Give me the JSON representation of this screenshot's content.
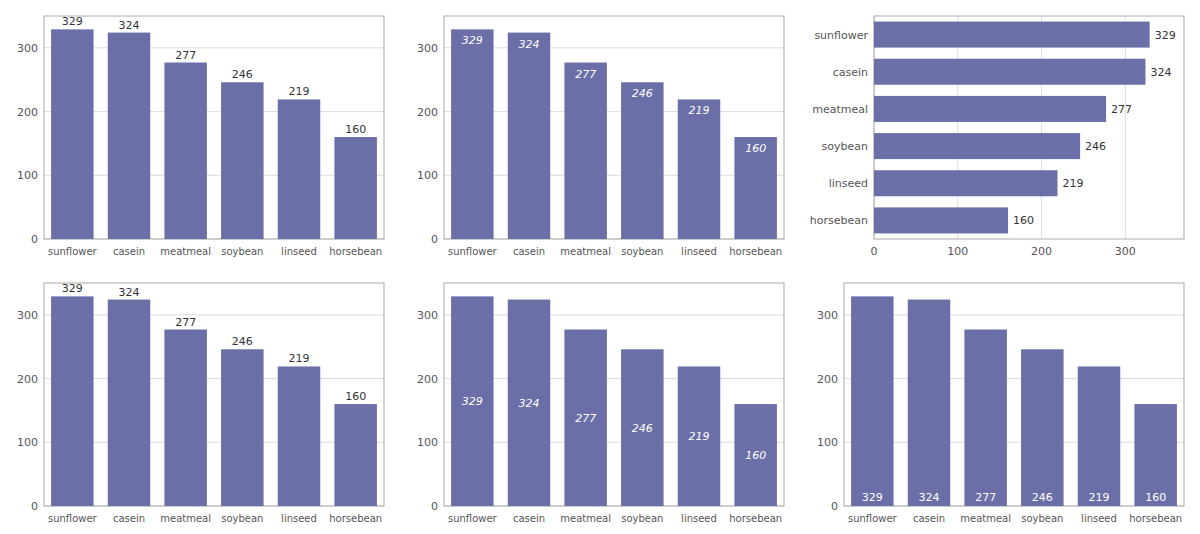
{
  "chart_data": [
    {
      "type": "bar",
      "categories": [
        "sunflower",
        "casein",
        "meatmeal",
        "soybean",
        "linseed",
        "horsebean"
      ],
      "values": [
        329,
        324,
        277,
        246,
        219,
        160
      ],
      "color": "#6b6fa8",
      "ylim": [
        0,
        350
      ],
      "yticks": [
        0,
        100,
        200,
        300
      ],
      "grid": true,
      "data_labels": true
    },
    {
      "type": "bar",
      "categories": [
        "sunflower",
        "casein",
        "meatmeal",
        "soybean",
        "linseed",
        "horsebean"
      ],
      "values": [
        329,
        324,
        277,
        246,
        219,
        160
      ],
      "color": "#6b6fa8",
      "ylim": [
        0,
        350
      ],
      "yticks": [
        0,
        100,
        200,
        300
      ],
      "grid": true,
      "data_labels": true
    },
    {
      "type": "bar",
      "orientation": "horizontal",
      "categories": [
        "horsebean",
        "linseed",
        "soybean",
        "meatmeal",
        "casein",
        "sunflower"
      ],
      "values": [
        160,
        219,
        246,
        277,
        324,
        329
      ],
      "color": "#6b6fa8",
      "xlim": [
        0,
        370
      ],
      "xticks": [
        0,
        100,
        200,
        300
      ],
      "grid": true,
      "data_labels": true
    },
    {
      "type": "bar",
      "categories": [
        "sunflower",
        "casein",
        "meatmeal",
        "soybean",
        "linseed",
        "horsebean"
      ],
      "values": [
        329,
        324,
        277,
        246,
        219,
        160
      ],
      "color": "#6b6fa8",
      "ylim": [
        0,
        350
      ],
      "yticks": [
        0,
        100,
        200,
        300
      ],
      "grid": true,
      "data_labels": true
    },
    {
      "type": "bar",
      "categories": [
        "sunflower",
        "casein",
        "meatmeal",
        "soybean",
        "linseed",
        "horsebean"
      ],
      "values": [
        329,
        324,
        277,
        246,
        219,
        160
      ],
      "color": "#6b6fa8",
      "ylim": [
        0,
        350
      ],
      "yticks": [
        0,
        100,
        200,
        300
      ],
      "grid": true,
      "data_labels": true
    },
    {
      "type": "bar",
      "categories": [
        "sunflower",
        "casein",
        "meatmeal",
        "soybean",
        "linseed",
        "horsebean"
      ],
      "values": [
        329,
        324,
        277,
        246,
        219,
        160
      ],
      "color": "#6b6fa8",
      "ylim": [
        0,
        350
      ],
      "yticks": [
        0,
        100,
        200,
        300
      ],
      "grid": true,
      "data_labels": true
    }
  ]
}
